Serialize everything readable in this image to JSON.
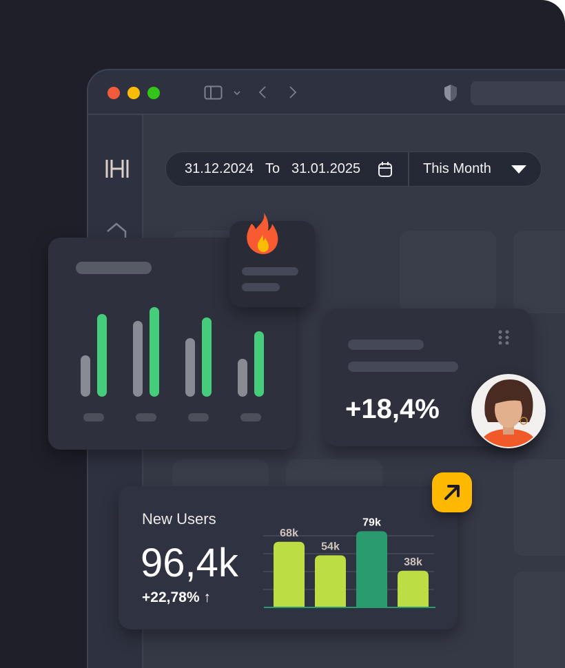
{
  "window": {
    "traffic_lights": [
      "#f25a3c",
      "#fbbc05",
      "#34c51a"
    ]
  },
  "date_filter": {
    "from": "31.12.2024",
    "to_label": "To",
    "to": "31.01.2025",
    "range": "This Month"
  },
  "growth_card": {
    "value": "+18,4%"
  },
  "new_users": {
    "title": "New Users",
    "value": "96,4k",
    "change": "+22,78%",
    "change_icon": "arrow-up-icon"
  },
  "chart_data": {
    "type": "bar",
    "categories": [
      "",
      "",
      "",
      ""
    ],
    "values": [
      68,
      54,
      79,
      38
    ],
    "data_labels": [
      "68k",
      "54k",
      "79k",
      "38k"
    ],
    "highlight_index": 2,
    "colors": {
      "default": "#bddd45",
      "highlight": "#2a9b6f"
    },
    "grid": true
  },
  "colors": {
    "accent_green": "#46cd7b",
    "accent_yellow": "#ffb800",
    "fire": "#f85a32"
  }
}
